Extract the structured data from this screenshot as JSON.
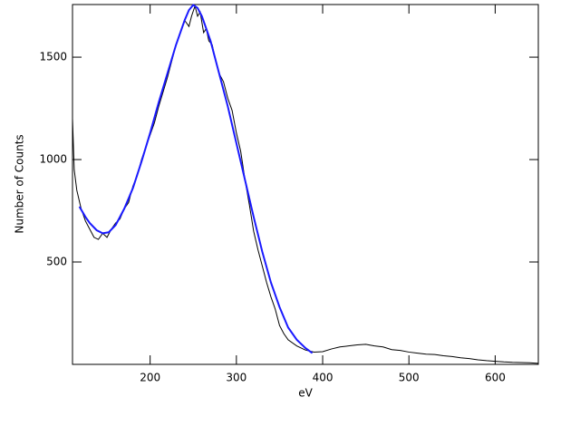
{
  "chart_data": {
    "type": "line",
    "x_label": "eV",
    "y_label": "Number of Counts",
    "xlim": [
      110,
      650
    ],
    "ylim": [
      0,
      1757
    ],
    "xticks": [
      200,
      300,
      400,
      500,
      600
    ],
    "yticks": [
      500,
      1000,
      1500
    ],
    "series": [
      {
        "color": "#000000",
        "x": [
          110,
          112,
          115,
          120,
          125,
          130,
          135,
          140,
          145,
          150,
          155,
          160,
          165,
          170,
          175,
          180,
          185,
          190,
          195,
          200,
          205,
          210,
          215,
          220,
          225,
          230,
          235,
          240,
          245,
          248,
          252,
          255,
          258,
          262,
          265,
          268,
          272,
          275,
          280,
          285,
          290,
          295,
          300,
          305,
          310,
          315,
          320,
          325,
          330,
          335,
          340,
          345,
          350,
          355,
          360,
          370,
          380,
          390,
          400,
          410,
          420,
          430,
          440,
          450,
          460,
          470,
          480,
          490,
          500,
          510,
          520,
          530,
          540,
          550,
          560,
          570,
          580,
          590,
          600,
          610,
          620,
          630,
          640,
          650
        ],
        "values": [
          1200,
          950,
          850,
          760,
          700,
          660,
          620,
          610,
          640,
          620,
          660,
          690,
          710,
          760,
          790,
          870,
          920,
          1000,
          1060,
          1120,
          1180,
          1260,
          1330,
          1400,
          1480,
          1560,
          1620,
          1680,
          1650,
          1700,
          1750,
          1700,
          1720,
          1620,
          1640,
          1580,
          1560,
          1500,
          1420,
          1380,
          1300,
          1240,
          1130,
          1040,
          900,
          780,
          650,
          560,
          480,
          400,
          330,
          270,
          190,
          150,
          120,
          90,
          70,
          60,
          62,
          75,
          85,
          90,
          95,
          98,
          90,
          85,
          72,
          68,
          60,
          55,
          50,
          48,
          42,
          38,
          32,
          28,
          22,
          18,
          15,
          12,
          10,
          9,
          8,
          5
        ]
      },
      {
        "color": "#1a1aff",
        "x": [
          118,
          125,
          130,
          138,
          145,
          152,
          160,
          170,
          180,
          190,
          200,
          210,
          220,
          230,
          240,
          245,
          250,
          255,
          260,
          270,
          280,
          290,
          300,
          310,
          320,
          330,
          340,
          350,
          360,
          370,
          380,
          388
        ],
        "values": [
          770,
          720,
          690,
          655,
          640,
          645,
          680,
          760,
          860,
          990,
          1130,
          1280,
          1420,
          1560,
          1680,
          1730,
          1755,
          1740,
          1700,
          1580,
          1420,
          1260,
          1080,
          900,
          720,
          550,
          400,
          280,
          180,
          120,
          80,
          55
        ]
      }
    ]
  }
}
